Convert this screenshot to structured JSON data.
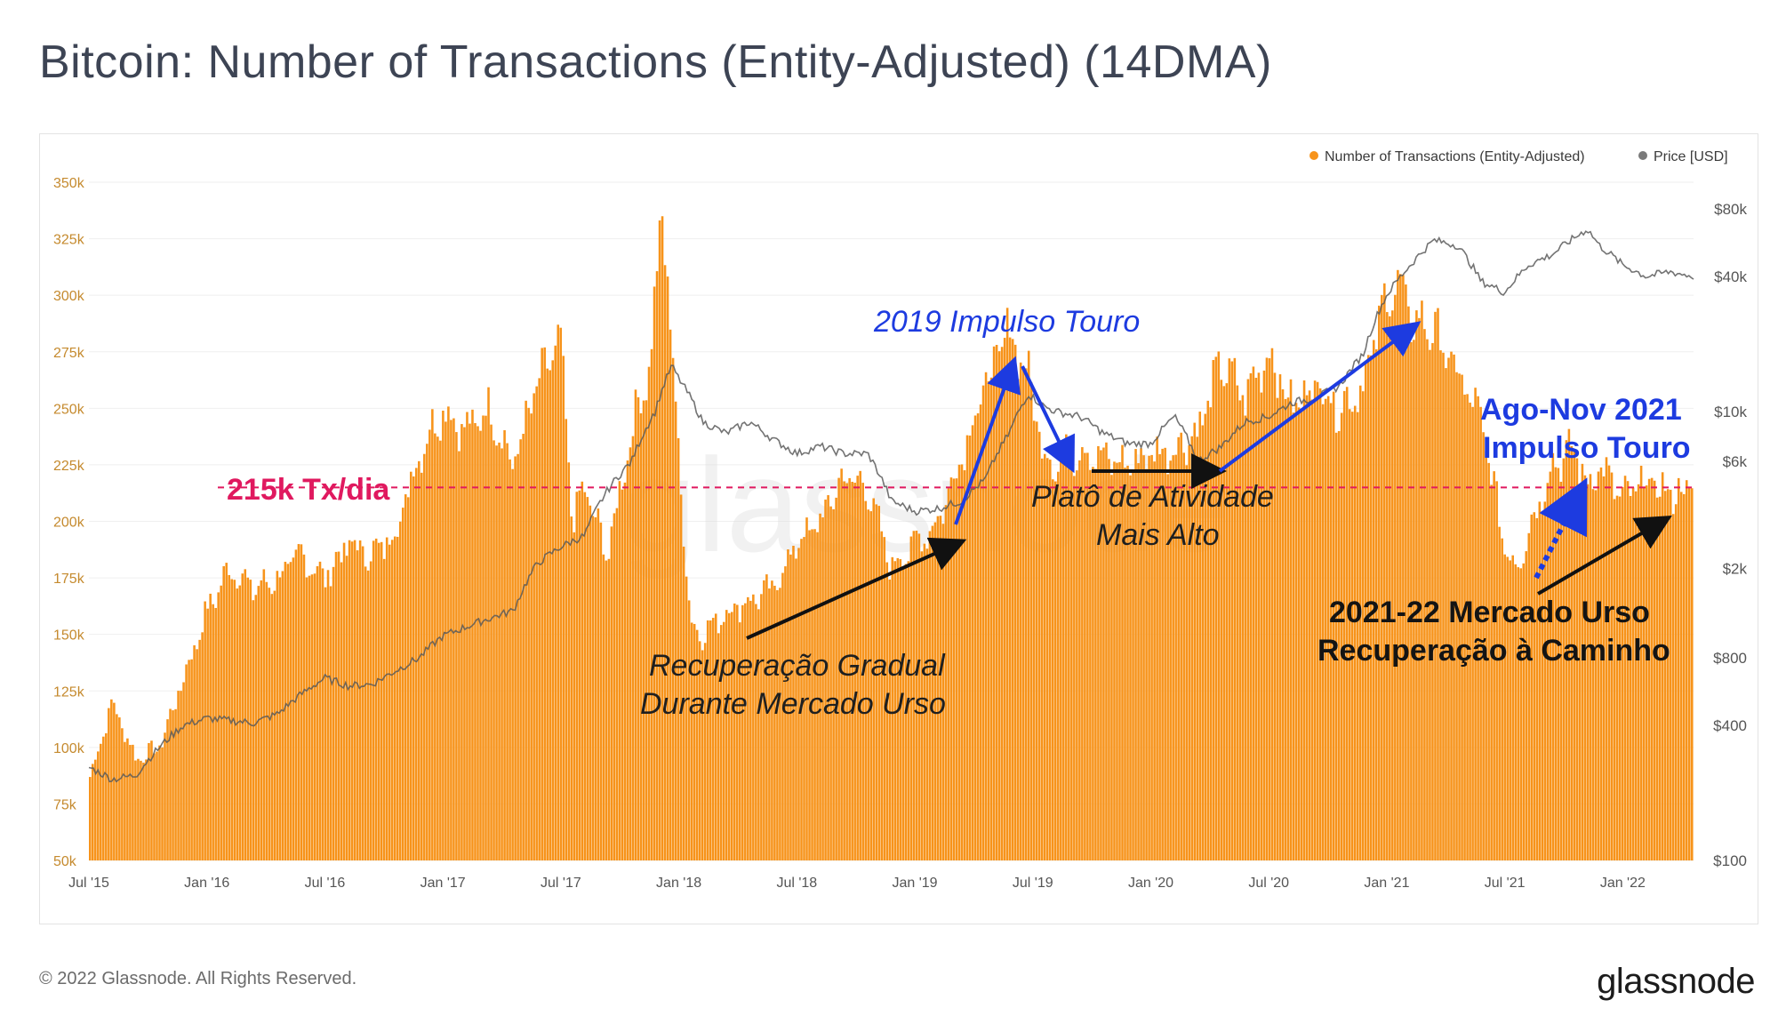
{
  "page": {
    "title": "Bitcoin: Number of Transactions (Entity-Adjusted) (14DMA)",
    "footer": "© 2022 Glassnode. All Rights Reserved.",
    "brand": "glassnode",
    "watermark": "glassnode"
  },
  "chart_data": {
    "type": "area",
    "title": "Bitcoin: Number of Transactions (Entity-Adjusted) (14DMA)",
    "legend": [
      {
        "label": "Number of Transactions (Entity-Adjusted)",
        "color": "#f7931a"
      },
      {
        "label": "Price [USD]",
        "color": "#7a7a7a"
      }
    ],
    "legend_position": "top-right",
    "x_ticks": [
      "Jul '15",
      "Jan '16",
      "Jul '16",
      "Jan '17",
      "Jul '17",
      "Jan '18",
      "Jul '18",
      "Jan '19",
      "Jul '19",
      "Jan '20",
      "Jul '20",
      "Jan '21",
      "Jul '21",
      "Jan '22"
    ],
    "y_left": {
      "ticks": [
        "50k",
        "75k",
        "100k",
        "125k",
        "150k",
        "175k",
        "200k",
        "225k",
        "250k",
        "275k",
        "300k",
        "325k",
        "350k"
      ],
      "ylim": [
        50000,
        350000
      ]
    },
    "y_right": {
      "ticks": [
        "$100",
        "$400",
        "$800",
        "$2k",
        "$6k",
        "$10k",
        "$40k",
        "$80k"
      ],
      "scale": "log"
    },
    "series": [
      {
        "name": "Number of Transactions (Entity-Adjusted)",
        "axis": "left",
        "x": [
          2015.5,
          2015.6,
          2015.7,
          2015.8,
          2015.9,
          2016.0,
          2016.1,
          2016.2,
          2016.3,
          2016.4,
          2016.5,
          2016.6,
          2016.7,
          2016.8,
          2016.9,
          2017.0,
          2017.1,
          2017.2,
          2017.3,
          2017.4,
          2017.5,
          2017.55,
          2017.6,
          2017.7,
          2017.8,
          2017.88,
          2017.93,
          2017.97,
          2018.0,
          2018.05,
          2018.1,
          2018.2,
          2018.3,
          2018.4,
          2018.5,
          2018.6,
          2018.7,
          2018.8,
          2018.9,
          2019.0,
          2019.1,
          2019.2,
          2019.3,
          2019.4,
          2019.48,
          2019.55,
          2019.6,
          2019.7,
          2019.8,
          2019.9,
          2020.0,
          2020.1,
          2020.2,
          2020.3,
          2020.4,
          2020.5,
          2020.6,
          2020.7,
          2020.8,
          2020.9,
          2021.0,
          2021.05,
          2021.1,
          2021.2,
          2021.3,
          2021.4,
          2021.5,
          2021.55,
          2021.6,
          2021.7,
          2021.8,
          2021.85,
          2021.9,
          2022.0,
          2022.1,
          2022.2,
          2022.3
        ],
        "values": [
          85000,
          120000,
          95000,
          100000,
          130000,
          160000,
          180000,
          170000,
          175000,
          185000,
          175000,
          190000,
          185000,
          195000,
          230000,
          250000,
          240000,
          250000,
          225000,
          260000,
          280000,
          200000,
          215000,
          185000,
          240000,
          270000,
          340000,
          280000,
          230000,
          155000,
          150000,
          160000,
          165000,
          170000,
          190000,
          200000,
          220000,
          215000,
          180000,
          190000,
          200000,
          230000,
          260000,
          285000,
          265000,
          230000,
          225000,
          232000,
          228000,
          225000,
          230000,
          232000,
          240000,
          270000,
          255000,
          275000,
          250000,
          262000,
          250000,
          260000,
          300000,
          305000,
          290000,
          285000,
          265000,
          245000,
          190000,
          180000,
          195000,
          225000,
          232000,
          215000,
          225000,
          210000,
          218000,
          212000,
          215000
        ]
      },
      {
        "name": "Price [USD]",
        "axis": "right",
        "x": [
          2015.5,
          2015.6,
          2015.7,
          2015.8,
          2015.9,
          2016.0,
          2016.1,
          2016.2,
          2016.3,
          2016.4,
          2016.5,
          2016.6,
          2016.7,
          2016.8,
          2016.9,
          2017.0,
          2017.1,
          2017.2,
          2017.3,
          2017.4,
          2017.5,
          2017.6,
          2017.7,
          2017.8,
          2017.9,
          2017.97,
          2018.0,
          2018.1,
          2018.2,
          2018.3,
          2018.4,
          2018.5,
          2018.6,
          2018.7,
          2018.8,
          2018.9,
          2019.0,
          2019.1,
          2019.2,
          2019.3,
          2019.4,
          2019.48,
          2019.55,
          2019.6,
          2019.7,
          2019.8,
          2019.9,
          2020.0,
          2020.1,
          2020.2,
          2020.3,
          2020.4,
          2020.5,
          2020.6,
          2020.7,
          2020.8,
          2020.9,
          2021.0,
          2021.1,
          2021.2,
          2021.3,
          2021.4,
          2021.5,
          2021.6,
          2021.7,
          2021.8,
          2021.85,
          2021.9,
          2022.0,
          2022.1,
          2022.2,
          2022.3
        ],
        "values": [
          260,
          230,
          240,
          320,
          400,
          430,
          420,
          410,
          450,
          550,
          650,
          600,
          610,
          700,
          800,
          1000,
          1100,
          1200,
          1300,
          2100,
          2500,
          2800,
          4500,
          6000,
          10000,
          16000,
          14000,
          9000,
          8000,
          9000,
          7500,
          6500,
          7000,
          6500,
          6500,
          4000,
          3600,
          3700,
          4000,
          5000,
          8000,
          12000,
          10500,
          10000,
          9500,
          8000,
          7200,
          7200,
          9500,
          6000,
          7000,
          9000,
          9500,
          11000,
          11500,
          13000,
          18000,
          33000,
          45000,
          58000,
          55000,
          38000,
          34000,
          45000,
          50000,
          60000,
          65000,
          55000,
          45000,
          40000,
          42000,
          40000
        ]
      }
    ],
    "reference_line": {
      "value": 215000,
      "label": "215k Tx/dia"
    },
    "annotations": [
      {
        "text": "2019 Impulso Touro",
        "style": "blue-italic"
      },
      {
        "text": "Platô de Atividade",
        "style": "black-italic"
      },
      {
        "text": "Mais Alto",
        "style": "black-italic"
      },
      {
        "text": "Recuperação Gradual",
        "style": "black-italic"
      },
      {
        "text": "Durante Mercado Urso",
        "style": "black-italic"
      },
      {
        "text": "Ago-Nov 2021",
        "style": "blue-bold"
      },
      {
        "text": "Impulso Touro",
        "style": "blue-bold"
      },
      {
        "text": "2021-22 Mercado Urso",
        "style": "black-bold"
      },
      {
        "text": "Recuperação à Caminho",
        "style": "black-bold"
      }
    ]
  }
}
